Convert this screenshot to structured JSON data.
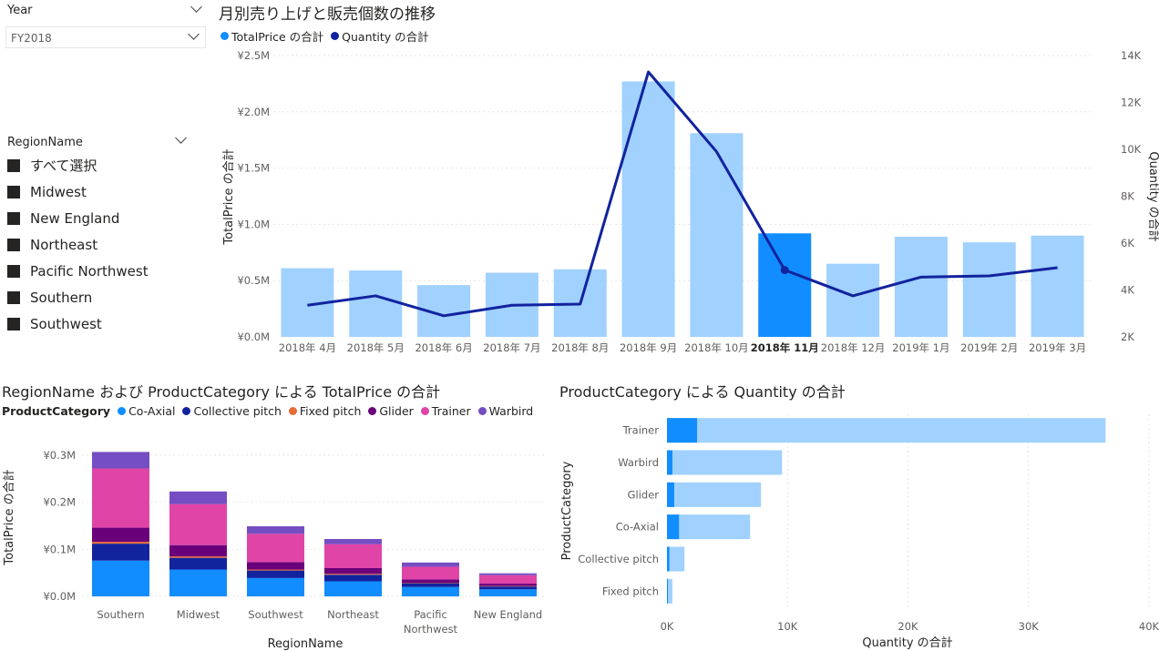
{
  "year_slicer": {
    "title": "Year",
    "selected": "FY2018"
  },
  "region_slicer": {
    "title": "RegionName",
    "items": [
      "すべて選択",
      "Midwest",
      "New England",
      "Northeast",
      "Pacific Northwest",
      "Southern",
      "Southwest"
    ]
  },
  "colors": {
    "bar": "#a0d1ff",
    "bar_selected": "#118dff",
    "line": "#12239e",
    "co_axial": "#118dff",
    "collective_pitch": "#12239e",
    "fixed_pitch": "#e66c37",
    "glider": "#6b007b",
    "trainer": "#e044a7",
    "warbird": "#744ec2"
  },
  "chart1": {
    "title": "月別売り上げと販売個数の推移",
    "legend": [
      {
        "label": "TotalPrice の合計",
        "color": "#118dff"
      },
      {
        "label": "Quantity の合計",
        "color": "#12239e"
      }
    ]
  },
  "chart2": {
    "title": "RegionName および ProductCategory による TotalPrice の合計",
    "legend_title": "ProductCategory",
    "legend": [
      {
        "label": "Co-Axial",
        "color": "#118dff"
      },
      {
        "label": "Collective pitch",
        "color": "#12239e"
      },
      {
        "label": "Fixed pitch",
        "color": "#e66c37"
      },
      {
        "label": "Glider",
        "color": "#6b007b"
      },
      {
        "label": "Trainer",
        "color": "#e044a7"
      },
      {
        "label": "Warbird",
        "color": "#744ec2"
      }
    ]
  },
  "chart3": {
    "title": "ProductCategory による Quantity の合計"
  },
  "chart_data": [
    {
      "type": "bar",
      "title": "月別売り上げと販売個数の推移",
      "xlabel": "",
      "ylabel": "TotalPrice の合計",
      "y2label": "Quantity の合計",
      "categories": [
        "2018年 4月",
        "2018年 5月",
        "2018年 6月",
        "2018年 7月",
        "2018年 8月",
        "2018年 9月",
        "2018年 10月",
        "2018年 11月",
        "2018年 12月",
        "2019年 1月",
        "2019年 2月",
        "2019年 3月"
      ],
      "selected_category": "2018年 11月",
      "series": [
        {
          "name": "TotalPrice の合計",
          "type": "bar",
          "axis": "left",
          "values": [
            0.61,
            0.59,
            0.46,
            0.57,
            0.6,
            2.27,
            1.81,
            0.92,
            0.65,
            0.89,
            0.84,
            0.9
          ]
        },
        {
          "name": "Quantity の合計",
          "type": "line",
          "axis": "right",
          "values": [
            3350,
            3750,
            2900,
            3350,
            3400,
            13300,
            9900,
            4850,
            3750,
            4550,
            4600,
            4950
          ]
        }
      ],
      "ylim": [
        0,
        2.5
      ],
      "yticks": [
        "¥0.0M",
        "¥0.5M",
        "¥1.0M",
        "¥1.5M",
        "¥2.0M",
        "¥2.5M"
      ],
      "y2lim": [
        2000,
        14000
      ],
      "y2ticks": [
        "2K",
        "4K",
        "6K",
        "8K",
        "10K",
        "12K",
        "14K"
      ],
      "grid": true
    },
    {
      "type": "bar",
      "stacked": true,
      "title": "RegionName および ProductCategory による TotalPrice の合計",
      "xlabel": "RegionName",
      "ylabel": "TotalPrice の合計",
      "categories": [
        "Southern",
        "Midwest",
        "Southwest",
        "Northeast",
        "Pacific Northwest",
        "New England"
      ],
      "series": [
        {
          "name": "Co-Axial",
          "values": [
            0.076,
            0.057,
            0.039,
            0.032,
            0.02,
            0.015
          ]
        },
        {
          "name": "Collective pitch",
          "values": [
            0.036,
            0.025,
            0.016,
            0.014,
            0.008,
            0.006
          ]
        },
        {
          "name": "Fixed pitch",
          "values": [
            0.004,
            0.003,
            0.002,
            0.002,
            0.001,
            0.001
          ]
        },
        {
          "name": "Glider",
          "values": [
            0.03,
            0.024,
            0.016,
            0.012,
            0.007,
            0.005
          ]
        },
        {
          "name": "Trainer",
          "values": [
            0.126,
            0.087,
            0.06,
            0.051,
            0.027,
            0.018
          ]
        },
        {
          "name": "Warbird",
          "values": [
            0.035,
            0.027,
            0.016,
            0.011,
            0.009,
            0.004
          ]
        }
      ],
      "ylim": [
        0,
        0.3
      ],
      "yticks": [
        "¥0.0M",
        "¥0.1M",
        "¥0.2M",
        "¥0.3M"
      ],
      "grid": true
    },
    {
      "type": "bar",
      "orientation": "horizontal",
      "title": "ProductCategory による Quantity の合計",
      "xlabel": "Quantity の合計",
      "ylabel": "ProductCategory",
      "categories": [
        "Trainer",
        "Warbird",
        "Glider",
        "Co-Axial",
        "Collective pitch",
        "Fixed pitch"
      ],
      "series": [
        {
          "name": "selected",
          "values": [
            2500,
            450,
            600,
            1000,
            200,
            80
          ]
        },
        {
          "name": "total",
          "values": [
            36400,
            9550,
            7800,
            6900,
            1450,
            450
          ]
        }
      ],
      "xlim": [
        0,
        40000
      ],
      "xticks": [
        "0K",
        "10K",
        "20K",
        "30K",
        "40K"
      ],
      "grid": true
    }
  ]
}
